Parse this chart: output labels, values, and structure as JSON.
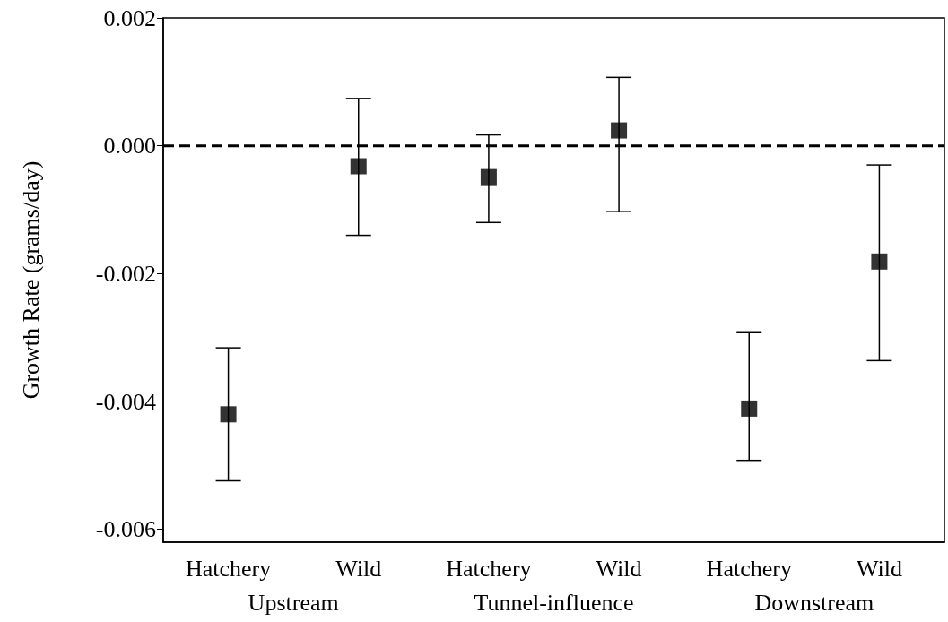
{
  "chart_data": {
    "type": "scatter",
    "ylabel": "Growth Rate (grams/day)",
    "categories": [
      "Hatchery",
      "Wild",
      "Hatchery",
      "Wild",
      "Hatchery",
      "Wild"
    ],
    "values": [
      -0.0042,
      -0.00032,
      -0.00049,
      0.00024,
      -0.00411,
      -0.00181
    ],
    "errors": [
      [
        -0.00524,
        -0.00316
      ],
      [
        -0.0014,
        0.00074
      ],
      [
        -0.0012,
        0.00017
      ],
      [
        -0.00103,
        0.00107
      ],
      [
        -0.00492,
        -0.00291
      ],
      [
        -0.00336,
        -0.0003
      ]
    ],
    "color": "#000000",
    "marker": "square",
    "ylim": [
      -0.0062,
      0.002
    ],
    "yticks": [
      {
        "value": -0.006,
        "label": "-0.006"
      },
      {
        "value": -0.004,
        "label": "-0.004"
      },
      {
        "value": -0.002,
        "label": "-0.002"
      },
      {
        "value": 0,
        "label": "0.000"
      },
      {
        "value": 0.002,
        "label": "0.002"
      }
    ],
    "ref_lines": [
      {
        "axis": "y",
        "value": 0,
        "line_style": "dashed"
      }
    ],
    "annotations": [
      "Upstream",
      "Tunnel-influence",
      "Downstream"
    ],
    "grid": false
  }
}
